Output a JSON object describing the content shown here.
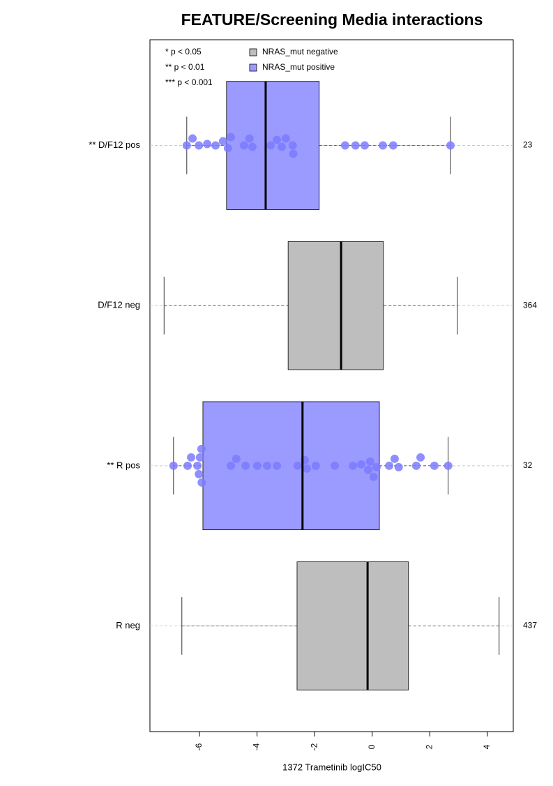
{
  "chart_data": {
    "type": "boxplot",
    "title": "FEATURE/Screening Media interactions",
    "xlabel": "1372 Trametinib logIC50",
    "xlim": [
      -7.72,
      4.9
    ],
    "xticks": [
      -6,
      -4,
      -2,
      0,
      2,
      4
    ],
    "grid": true,
    "significance_notes": [
      "* p < 0.05",
      "** p < 0.01",
      "*** p < 0.001"
    ],
    "legend": [
      {
        "name": "NRAS_mut negative",
        "color": "#bebebe"
      },
      {
        "name": "NRAS_mut positive",
        "color": "#9b9bff"
      }
    ],
    "categories": [
      "** D/F12 pos",
      "D/F12 neg",
      "** R pos",
      "R neg"
    ],
    "counts": [
      23,
      364,
      32,
      437
    ],
    "boxes": [
      {
        "color": "#9b9bff",
        "point_color": "#7b7bff",
        "low": -6.44,
        "q1": -5.06,
        "median": -3.7,
        "q3": -1.84,
        "high": 2.72,
        "points": [
          -6.44,
          -6.24,
          -6.02,
          -5.73,
          -5.44,
          -5.18,
          -5.01,
          -4.91,
          -4.45,
          -4.26,
          -4.16,
          -3.53,
          -3.31,
          -3.14,
          -3.0,
          -2.76,
          -2.74,
          -0.94,
          -0.58,
          -0.26,
          0.37,
          0.73,
          2.72
        ]
      },
      {
        "color": "#bebebe",
        "point_color": "#aaaaaa",
        "low": -7.23,
        "q1": -2.92,
        "median": -1.08,
        "q3": 0.39,
        "high": 2.96
      },
      {
        "color": "#9b9bff",
        "point_color": "#7b7bff",
        "low": -6.9,
        "q1": -5.88,
        "median": -2.42,
        "q3": 0.25,
        "high": 2.64,
        "points": [
          -6.9,
          -6.41,
          -6.29,
          -6.07,
          -6.02,
          -5.98,
          -5.93,
          -5.92,
          -4.91,
          -4.72,
          -4.4,
          -3.99,
          -3.65,
          -3.31,
          -2.59,
          -2.34,
          -2.27,
          -1.96,
          -1.3,
          -0.67,
          -0.38,
          -0.14,
          -0.07,
          0.05,
          0.15,
          0.59,
          0.78,
          0.92,
          1.53,
          1.68,
          2.16,
          2.64
        ]
      },
      {
        "color": "#bebebe",
        "point_color": "#aaaaaa",
        "low": -6.61,
        "q1": -2.61,
        "median": -0.16,
        "q3": 1.26,
        "high": 4.41
      }
    ]
  }
}
